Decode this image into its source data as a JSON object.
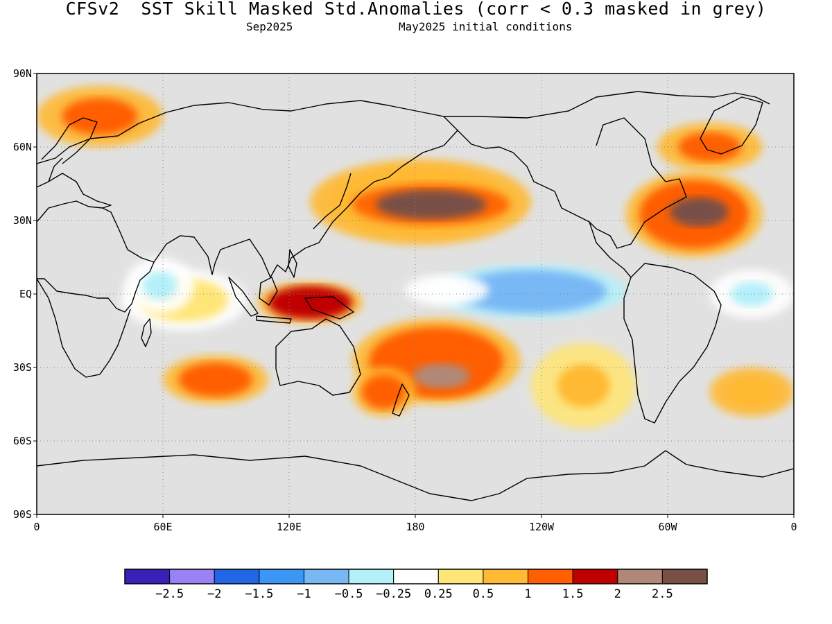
{
  "header": {
    "title": "CFSv2  SST Skill Masked Std.Anomalies (corr < 0.3 masked in grey)",
    "valid_month": "Sep2025",
    "initial_conditions": "May2025 initial conditions"
  },
  "map": {
    "projection": "equirectangular",
    "lon_range": [
      0,
      360
    ],
    "lat_range": [
      -90,
      90
    ],
    "mask_color": "#e1e1e1",
    "coastline_color": "#000000",
    "gridlines": "dotted",
    "lat_tick_labels": [
      "90S",
      "60S",
      "30S",
      "EQ",
      "30N",
      "60N",
      "90N"
    ],
    "lat_tick_values": [
      -90,
      -60,
      -30,
      0,
      30,
      60,
      90
    ],
    "lon_tick_labels": [
      "0",
      "60E",
      "120E",
      "180",
      "120W",
      "60W",
      "0"
    ],
    "lon_tick_values": [
      0,
      60,
      120,
      180,
      240,
      300,
      360
    ]
  },
  "colorbar": {
    "colors": [
      "#3a1fb8",
      "#9a82f5",
      "#2066e6",
      "#3c96f5",
      "#78b8f5",
      "#b4f0fa",
      "#ffffff",
      "#ffe678",
      "#ffb933",
      "#ff5f00",
      "#c00000",
      "#b08878",
      "#785046"
    ],
    "labels": [
      "−2.5",
      "−2",
      "−1.5",
      "−1",
      "−0.5",
      "−0.25",
      "0.25",
      "0.5",
      "1",
      "1.5",
      "2",
      "2.5"
    ]
  },
  "anomaly_regions": [
    {
      "name": "north-pacific-warm",
      "lon": [
        130,
        235
      ],
      "lat": [
        20,
        55
      ],
      "level": 1,
      "scale": 0.8
    },
    {
      "name": "north-pacific-core",
      "lon": [
        150,
        225
      ],
      "lat": [
        28,
        45
      ],
      "level": 2.6,
      "scale": 0.7
    },
    {
      "name": "north-atlantic-warm",
      "lon": [
        280,
        345
      ],
      "lat": [
        15,
        50
      ],
      "level": 1.3,
      "scale": 0.8
    },
    {
      "name": "north-atlantic-core",
      "lon": [
        295,
        335
      ],
      "lat": [
        25,
        42
      ],
      "level": 2.6,
      "scale": 0.7
    },
    {
      "name": "eastern-pacific-cool",
      "lon": [
        190,
        280
      ],
      "lat": [
        -10,
        12
      ],
      "level": -0.7,
      "scale": 0.8
    },
    {
      "name": "central-pacific-neutral",
      "lon": [
        175,
        215
      ],
      "lat": [
        -5,
        8
      ],
      "level": 0,
      "scale": 0.6
    },
    {
      "name": "maritime-continent-warm",
      "lon": [
        105,
        155
      ],
      "lat": [
        -12,
        5
      ],
      "level": 1.6,
      "scale": 0.8
    },
    {
      "name": "south-pacific-warm-band",
      "lon": [
        150,
        230
      ],
      "lat": [
        -45,
        -10
      ],
      "level": 1.1,
      "scale": 0.8
    },
    {
      "name": "southwest-pacific-core",
      "lon": [
        170,
        215
      ],
      "lat": [
        -42,
        -25
      ],
      "level": 2.1,
      "scale": 0.6
    },
    {
      "name": "tasman-warm",
      "lon": [
        150,
        180
      ],
      "lat": [
        -50,
        -30
      ],
      "level": 1.3,
      "scale": 0.7
    },
    {
      "name": "south-indian-warm",
      "lon": [
        60,
        110
      ],
      "lat": [
        -45,
        -25
      ],
      "level": 1.2,
      "scale": 0.7
    },
    {
      "name": "indian-ocean-mixed",
      "lon": [
        40,
        100
      ],
      "lat": [
        -15,
        10
      ],
      "level": 0.4,
      "scale": 0.7
    },
    {
      "name": "west-indian-cool",
      "lon": [
        42,
        75
      ],
      "lat": [
        -8,
        15
      ],
      "level": -0.4,
      "scale": 0.5
    },
    {
      "name": "arctic-atlantic-mixed",
      "lon": [
        0,
        60
      ],
      "lat": [
        60,
        85
      ],
      "level": 1.2,
      "scale": 0.6
    },
    {
      "name": "south-atlantic-warm",
      "lon": [
        320,
        360
      ],
      "lat": [
        -50,
        -30
      ],
      "level": 1,
      "scale": 0.6
    },
    {
      "name": "tropical-atlantic-cool",
      "lon": [
        320,
        360
      ],
      "lat": [
        -10,
        10
      ],
      "level": -0.3,
      "scale": 0.5
    },
    {
      "name": "southeast-pacific-mixed",
      "lon": [
        235,
        285
      ],
      "lat": [
        -55,
        -20
      ],
      "level": 0.6,
      "scale": 0.5
    },
    {
      "name": "labrador-mixed",
      "lon": [
        295,
        345
      ],
      "lat": [
        50,
        70
      ],
      "level": 1.5,
      "scale": 0.6
    }
  ]
}
